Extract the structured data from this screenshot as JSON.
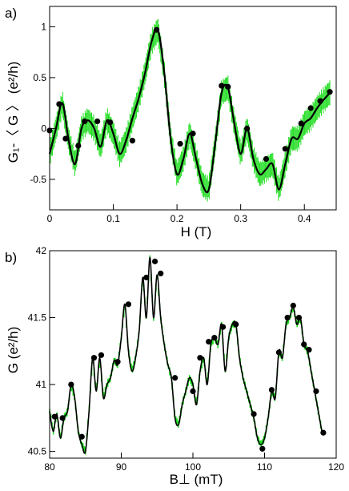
{
  "chart_data": [
    {
      "type": "line",
      "panel_label": "a)",
      "xlabel": "H (T)",
      "ylabel": "G₁-〈 G 〉 (e²/h)",
      "xlim": [
        0,
        0.45
      ],
      "ylim": [
        -0.8,
        1.2
      ],
      "xticks": [
        0,
        0.1,
        0.2,
        0.3,
        0.4
      ],
      "xtick_labels": [
        "0",
        "0.1",
        "0.2",
        "0.3",
        "0.4"
      ],
      "yticks": [
        -0.5,
        0,
        0.5,
        1
      ],
      "ytick_labels": [
        "-0.5",
        "0",
        "0.5",
        "1"
      ],
      "grid": false,
      "colors": {
        "noisy": "#22dd22",
        "smooth": "#000000",
        "markers": "#000000"
      },
      "series": [
        {
          "x": [
            0.0,
            0.01,
            0.02,
            0.03,
            0.04,
            0.05,
            0.06,
            0.07,
            0.08,
            0.09,
            0.1,
            0.11,
            0.12,
            0.13,
            0.14,
            0.15,
            0.16,
            0.17,
            0.18,
            0.19,
            0.2,
            0.21,
            0.22,
            0.23,
            0.24,
            0.25,
            0.26,
            0.27,
            0.28,
            0.29,
            0.3,
            0.31,
            0.32,
            0.33,
            0.34,
            0.35,
            0.36,
            0.37,
            0.38,
            0.39,
            0.4,
            0.41,
            0.42,
            0.43,
            0.44
          ],
          "y": [
            -0.25,
            0.0,
            0.25,
            -0.12,
            -0.35,
            0.0,
            0.08,
            0.0,
            -0.18,
            0.08,
            -0.05,
            -0.25,
            -0.12,
            0.1,
            0.3,
            0.55,
            0.85,
            0.97,
            0.55,
            -0.1,
            -0.45,
            -0.3,
            -0.05,
            -0.3,
            -0.55,
            -0.6,
            -0.15,
            0.35,
            0.4,
            0.05,
            -0.25,
            0.0,
            -0.3,
            -0.45,
            -0.4,
            -0.35,
            -0.6,
            -0.35,
            -0.1,
            -0.1,
            0.05,
            0.1,
            0.2,
            0.28,
            0.35
          ]
        }
      ],
      "markers": [
        [
          0.0,
          -0.02
        ],
        [
          0.015,
          0.24
        ],
        [
          0.025,
          -0.1
        ],
        [
          0.045,
          -0.17
        ],
        [
          0.055,
          0.07
        ],
        [
          0.075,
          0.07
        ],
        [
          0.095,
          0.06
        ],
        [
          0.13,
          -0.12
        ],
        [
          0.168,
          0.97
        ],
        [
          0.205,
          -0.15
        ],
        [
          0.225,
          -0.05
        ],
        [
          0.27,
          0.42
        ],
        [
          0.28,
          0.41
        ],
        [
          0.31,
          0.0
        ],
        [
          0.34,
          -0.3
        ],
        [
          0.37,
          -0.2
        ],
        [
          0.395,
          0.05
        ],
        [
          0.41,
          0.2
        ],
        [
          0.425,
          0.27
        ],
        [
          0.44,
          0.36
        ]
      ]
    },
    {
      "type": "line",
      "panel_label": "b)",
      "xlabel": "B⊥ (mT)",
      "ylabel": "G (e²/h)",
      "xlim": [
        80,
        120
      ],
      "ylim": [
        40.45,
        42.0
      ],
      "xticks": [
        80,
        90,
        100,
        110,
        120
      ],
      "xtick_labels": [
        "80",
        "90",
        "100",
        "110",
        "120"
      ],
      "yticks": [
        40.5,
        41,
        41.5,
        42
      ],
      "ytick_labels": [
        "40.5",
        "41",
        "41.5",
        "42"
      ],
      "grid": false,
      "colors": {
        "noisy": "#22dd22",
        "smooth": "#000000",
        "markers": "#000000"
      },
      "series": [
        {
          "x": [
            80,
            80.5,
            81,
            81.5,
            82,
            82.5,
            83,
            83.5,
            84,
            84.5,
            85,
            85.5,
            86,
            86.5,
            87,
            87.5,
            88,
            88.5,
            89,
            89.5,
            90,
            90.5,
            91,
            91.5,
            92,
            92.5,
            93,
            93.5,
            94,
            94.5,
            95,
            95.5,
            96,
            96.5,
            97,
            97.5,
            98,
            98.5,
            99,
            99.5,
            100,
            100.5,
            101,
            101.5,
            102,
            102.5,
            103,
            103.5,
            104,
            104.5,
            105,
            105.5,
            106,
            106.5,
            107,
            107.5,
            108,
            108.5,
            109,
            109.5,
            110,
            110.5,
            111,
            111.5,
            112,
            112.5,
            113,
            113.5,
            114,
            114.5,
            115,
            115.5,
            116,
            116.5,
            117,
            117.5,
            118
          ],
          "y": [
            40.8,
            40.65,
            40.78,
            40.6,
            40.75,
            40.8,
            41.0,
            40.9,
            40.65,
            40.55,
            40.5,
            40.8,
            41.2,
            40.95,
            41.2,
            40.9,
            41.0,
            41.05,
            41.18,
            41.15,
            41.35,
            41.6,
            41.25,
            41.1,
            41.2,
            41.4,
            41.8,
            41.5,
            41.95,
            41.5,
            41.82,
            41.5,
            41.3,
            41.15,
            41.05,
            40.75,
            40.7,
            40.85,
            40.95,
            41.05,
            41.0,
            40.85,
            41.1,
            41.2,
            41.0,
            41.3,
            41.35,
            41.3,
            41.45,
            41.1,
            41.35,
            41.45,
            41.45,
            41.2,
            41.05,
            40.95,
            40.85,
            40.75,
            40.6,
            40.55,
            40.6,
            40.75,
            40.95,
            40.9,
            41.25,
            41.2,
            41.45,
            41.5,
            41.58,
            41.45,
            41.5,
            41.3,
            41.25,
            41.1,
            40.95,
            40.8,
            40.65
          ]
        }
      ],
      "markers": [
        [
          80.7,
          40.76
        ],
        [
          81.8,
          40.75
        ],
        [
          83.0,
          41.0
        ],
        [
          84.5,
          40.61
        ],
        [
          86.2,
          41.2
        ],
        [
          87.2,
          41.22
        ],
        [
          89.5,
          41.17
        ],
        [
          91.0,
          41.6
        ],
        [
          93.5,
          41.8
        ],
        [
          94.7,
          41.92
        ],
        [
          95.5,
          41.83
        ],
        [
          97.5,
          41.05
        ],
        [
          100.0,
          40.95
        ],
        [
          101.0,
          41.2
        ],
        [
          102.2,
          41.32
        ],
        [
          103.0,
          41.35
        ],
        [
          104.2,
          41.43
        ],
        [
          106.0,
          41.45
        ],
        [
          108.5,
          40.78
        ],
        [
          109.7,
          40.52
        ],
        [
          111.0,
          40.96
        ],
        [
          112.0,
          41.24
        ],
        [
          113.2,
          41.5
        ],
        [
          114.0,
          41.59
        ],
        [
          114.8,
          41.5
        ],
        [
          115.5,
          41.3
        ],
        [
          116.2,
          41.26
        ],
        [
          117.2,
          40.95
        ],
        [
          118.2,
          40.64
        ]
      ]
    }
  ]
}
